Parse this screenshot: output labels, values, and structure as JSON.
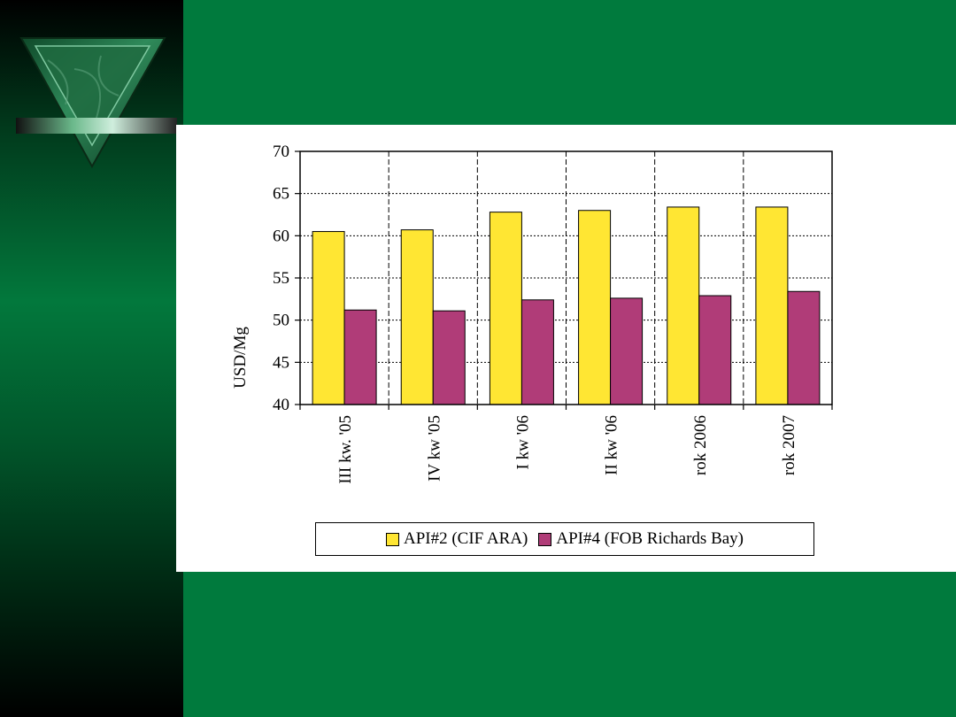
{
  "slide": {
    "colors": {
      "background": "#007a3d",
      "panel": "#ffffff"
    },
    "logo_icon": "green-marble-inverted-triangle-icon"
  },
  "chart_data": {
    "type": "bar",
    "title": "",
    "xlabel": "",
    "ylabel": "USD/Mg",
    "ylim": [
      40,
      70
    ],
    "yticks": [
      40,
      45,
      50,
      55,
      60,
      65,
      70
    ],
    "grid": true,
    "legend_position": "bottom",
    "categories": [
      "III kw. '05",
      "IV kw '05",
      "I kw '06",
      "II kw '06",
      "rok 2006",
      "rok 2007"
    ],
    "series": [
      {
        "name": "API#2 (CIF ARA)",
        "color": "#ffe633",
        "values": [
          60.5,
          60.7,
          62.8,
          63.0,
          63.4,
          63.4
        ]
      },
      {
        "name": "API#4 (FOB Richards Bay)",
        "color": "#b03c78",
        "values": [
          51.2,
          51.1,
          52.4,
          52.6,
          52.9,
          53.4
        ]
      }
    ]
  }
}
